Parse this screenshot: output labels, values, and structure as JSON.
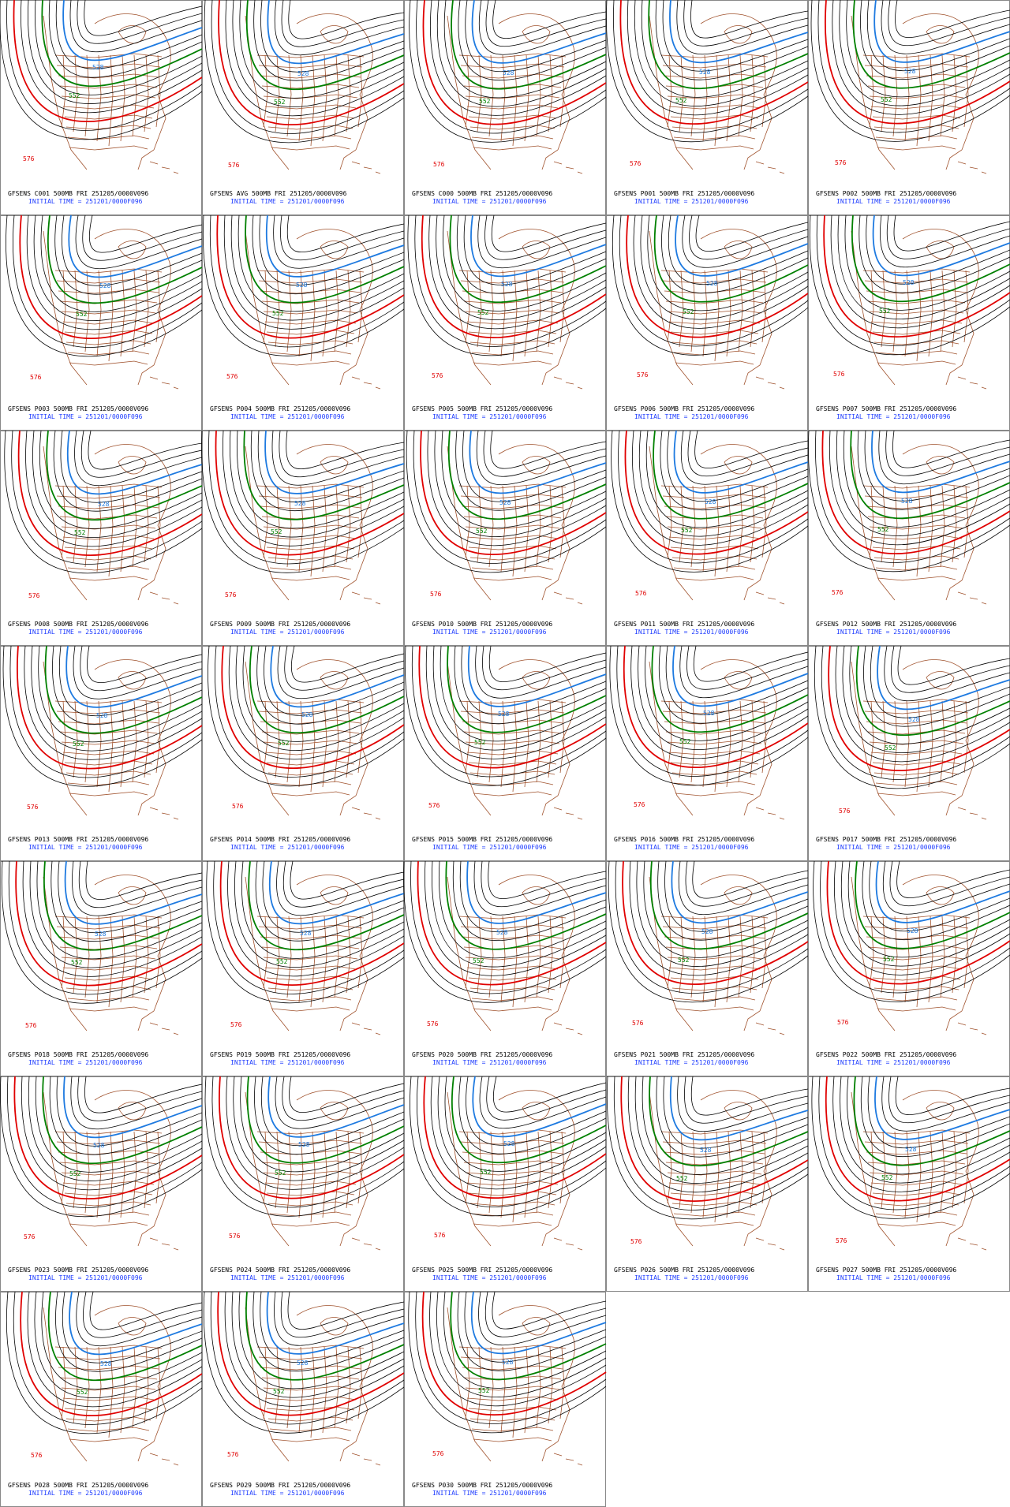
{
  "panels": [
    {
      "title": "GFSENS C001 500MB FRI 251205/0000V096",
      "initial_time": "INITIAL TIME = 251201/0000F096",
      "contour_labels": [
        "576",
        "552",
        "528"
      ]
    },
    {
      "title": "GFSENS AVG 500MB FRI 251205/0000V096",
      "initial_time": "INITIAL TIME = 251201/0000F096",
      "contour_labels": [
        "576",
        "552",
        "528"
      ]
    },
    {
      "title": "GFSENS C000 500MB FRI 251205/0000V096",
      "initial_time": "INITIAL TIME = 251201/0000F096",
      "contour_labels": [
        "576",
        "552",
        "528"
      ]
    },
    {
      "title": "GFSENS P001 500MB FRI 251205/0000V096",
      "initial_time": "INITIAL TIME = 251201/0000F096",
      "contour_labels": [
        "576",
        "552",
        "528"
      ]
    },
    {
      "title": "GFSENS P002 500MB FRI 251205/0000V096",
      "initial_time": "INITIAL TIME = 251201/0000F096",
      "contour_labels": [
        "576",
        "552",
        "528"
      ]
    },
    {
      "title": "GFSENS P003 500MB FRI 251205/0000V096",
      "initial_time": "INITIAL TIME = 251201/0000F096",
      "contour_labels": [
        "576",
        "552",
        "528"
      ]
    },
    {
      "title": "GFSENS P004 500MB FRI 251205/0000V096",
      "initial_time": "INITIAL TIME = 251201/0000F096",
      "contour_labels": [
        "576",
        "552",
        "528"
      ]
    },
    {
      "title": "GFSENS P005 500MB FRI 251205/0000V096",
      "initial_time": "INITIAL TIME = 251201/0000F096",
      "contour_labels": [
        "576",
        "552",
        "528"
      ]
    },
    {
      "title": "GFSENS P006 500MB FRI 251205/0000V096",
      "initial_time": "INITIAL TIME = 251201/0000F096",
      "contour_labels": [
        "576",
        "552",
        "528"
      ]
    },
    {
      "title": "GFSENS P007 500MB FRI 251205/0000V096",
      "initial_time": "INITIAL TIME = 251201/0000F096",
      "contour_labels": [
        "576",
        "552",
        "528"
      ]
    },
    {
      "title": "GFSENS P008 500MB FRI 251205/0000V096",
      "initial_time": "INITIAL TIME = 251201/0000F096",
      "contour_labels": [
        "576",
        "552",
        "528"
      ]
    },
    {
      "title": "GFSENS P009 500MB FRI 251205/0000V096",
      "initial_time": "INITIAL TIME = 251201/0000F096",
      "contour_labels": [
        "576",
        "552",
        "528"
      ]
    },
    {
      "title": "GFSENS P010 500MB FRI 251205/0000V096",
      "initial_time": "INITIAL TIME = 251201/0000F096",
      "contour_labels": [
        "576",
        "552",
        "528"
      ]
    },
    {
      "title": "GFSENS P011 500MB FRI 251205/0000V096",
      "initial_time": "INITIAL TIME = 251201/0000F096",
      "contour_labels": [
        "576",
        "552",
        "528"
      ]
    },
    {
      "title": "GFSENS P012 500MB FRI 251205/0000V096",
      "initial_time": "INITIAL TIME = 251201/0000F096",
      "contour_labels": [
        "576",
        "552",
        "528"
      ]
    },
    {
      "title": "GFSENS P013 500MB FRI 251205/0000V096",
      "initial_time": "INITIAL TIME = 251201/0000F096",
      "contour_labels": [
        "576",
        "552",
        "528"
      ]
    },
    {
      "title": "GFSENS P014 500MB FRI 251205/0000V096",
      "initial_time": "INITIAL TIME = 251201/0000F096",
      "contour_labels": [
        "576",
        "552",
        "528"
      ]
    },
    {
      "title": "GFSENS P015 500MB FRI 251205/0000V096",
      "initial_time": "INITIAL TIME = 251201/0000F096",
      "contour_labels": [
        "576",
        "552",
        "528"
      ]
    },
    {
      "title": "GFSENS P016 500MB FRI 251205/0000V096",
      "initial_time": "INITIAL TIME = 251201/0000F096",
      "contour_labels": [
        "576",
        "552",
        "528"
      ]
    },
    {
      "title": "GFSENS P017 500MB FRI 251205/0000V096",
      "initial_time": "INITIAL TIME = 251201/0000F096",
      "contour_labels": [
        "576",
        "552",
        "528"
      ]
    },
    {
      "title": "GFSENS P018 500MB FRI 251205/0000V096",
      "initial_time": "INITIAL TIME = 251201/0000F096",
      "contour_labels": [
        "576",
        "552",
        "528"
      ]
    },
    {
      "title": "GFSENS P019 500MB FRI 251205/0000V096",
      "initial_time": "INITIAL TIME = 251201/0000F096",
      "contour_labels": [
        "576",
        "552",
        "528"
      ]
    },
    {
      "title": "GFSENS P020 500MB FRI 251205/0000V096",
      "initial_time": "INITIAL TIME = 251201/0000F096",
      "contour_labels": [
        "576",
        "552",
        "528"
      ]
    },
    {
      "title": "GFSENS P021 500MB FRI 251205/0000V096",
      "initial_time": "INITIAL TIME = 251201/0000F096",
      "contour_labels": [
        "576",
        "552",
        "528"
      ]
    },
    {
      "title": "GFSENS P022 500MB FRI 251205/0000V096",
      "initial_time": "INITIAL TIME = 251201/0000F096",
      "contour_labels": [
        "576",
        "552",
        "528"
      ]
    },
    {
      "title": "GFSENS P023 500MB FRI 251205/0000V096",
      "initial_time": "INITIAL TIME = 251201/0000F096",
      "contour_labels": [
        "576",
        "552",
        "528"
      ]
    },
    {
      "title": "GFSENS P024 500MB FRI 251205/0000V096",
      "initial_time": "INITIAL TIME = 251201/0000F096",
      "contour_labels": [
        "576",
        "552",
        "528"
      ]
    },
    {
      "title": "GFSENS P025 500MB FRI 251205/0000V096",
      "initial_time": "INITIAL TIME = 251201/0000F096",
      "contour_labels": [
        "576",
        "552",
        "528"
      ]
    },
    {
      "title": "GFSENS P026 500MB FRI 251205/0000V096",
      "initial_time": "INITIAL TIME = 251201/0000F096",
      "contour_labels": [
        "576",
        "552",
        "528"
      ]
    },
    {
      "title": "GFSENS P027 500MB FRI 251205/0000V096",
      "initial_time": "INITIAL TIME = 251201/0000F096",
      "contour_labels": [
        "576",
        "552",
        "528"
      ]
    },
    {
      "title": "GFSENS P028 500MB FRI 251205/0000V096",
      "initial_time": "INITIAL TIME = 251201/0000F096",
      "contour_labels": [
        "576",
        "552",
        "528"
      ]
    },
    {
      "title": "GFSENS P029 500MB FRI 251205/0000V096",
      "initial_time": "INITIAL TIME = 251201/0000F096",
      "contour_labels": [
        "576",
        "552",
        "528"
      ]
    },
    {
      "title": "GFSENS P030 500MB FRI 251205/0000V096",
      "initial_time": "INITIAL TIME = 251201/0000F096",
      "contour_labels": [
        "576",
        "552",
        "528"
      ]
    }
  ]
}
